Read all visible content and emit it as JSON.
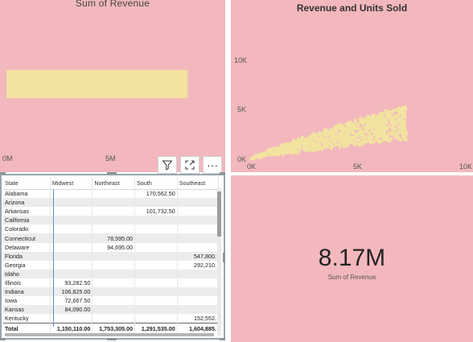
{
  "bar_tile": {
    "title": "Sum of Revenue",
    "x_ticks": [
      "0M",
      "5M"
    ]
  },
  "toolbar": {
    "filter_icon": "filter-icon",
    "focus_icon": "focus-mode-icon",
    "more_icon": "more-options-icon",
    "more_label": "···"
  },
  "matrix": {
    "headers": [
      "State",
      "Midwest",
      "Northeast",
      "South",
      "Southeast"
    ],
    "rows": [
      [
        "Alabama",
        "",
        "",
        "170,562.50",
        ""
      ],
      [
        "Arizona",
        "",
        "",
        "",
        ""
      ],
      [
        "Arkansas",
        "",
        "",
        "101,732.50",
        ""
      ],
      [
        "California",
        "",
        "",
        "",
        ""
      ],
      [
        "Colorado",
        "",
        "",
        "",
        ""
      ],
      [
        "Connecticut",
        "",
        "78,595.00",
        "",
        ""
      ],
      [
        "Delaware",
        "",
        "94,695.00",
        "",
        ""
      ],
      [
        "Florida",
        "",
        "",
        "",
        "547,800."
      ],
      [
        "Georgia",
        "",
        "",
        "",
        "292,210."
      ],
      [
        "Idaho",
        "",
        "",
        "",
        ""
      ],
      [
        "Illinois",
        "93,282.50",
        "",
        "",
        ""
      ],
      [
        "Indiana",
        "106,825.00",
        "",
        "",
        ""
      ],
      [
        "Iowa",
        "72,667.50",
        "",
        "",
        ""
      ],
      [
        "Kansas",
        "84,090.00",
        "",
        "",
        ""
      ],
      [
        "Kentucky",
        "",
        "",
        "",
        "152,552."
      ]
    ],
    "total": [
      "Total",
      "1,150,110.00",
      "1,753,305.00",
      "1,291,535.00",
      "1,604,885."
    ]
  },
  "scatter_tile": {
    "title": "Revenue and Units Sold",
    "y_ticks": [
      "10K",
      "5K",
      "0K"
    ],
    "x_ticks": [
      "0K",
      "5K",
      "10K"
    ]
  },
  "card": {
    "value": "8.17M",
    "label": "Sum of Revenue"
  },
  "colors": {
    "tile_background": "#f2b8bd",
    "data_color": "#f2e3a0"
  },
  "chart_data": [
    {
      "type": "bar",
      "title": "Sum of Revenue",
      "orientation": "horizontal",
      "categories": [
        ""
      ],
      "values": [
        8170000
      ],
      "xlim": [
        0,
        9500000
      ],
      "x_ticks": [
        "0M",
        "5M"
      ]
    },
    {
      "type": "scatter",
      "title": "Revenue and Units Sold",
      "xlim": [
        0,
        10000
      ],
      "ylim": [
        0,
        13000
      ],
      "x_ticks": [
        "0K",
        "5K",
        "10K"
      ],
      "y_ticks": [
        "0K",
        "5K",
        "10K"
      ],
      "point_cloud": {
        "count": 900,
        "x_max": 7200,
        "fan_max_slope": 1.65,
        "fan_min_slope": 0.6,
        "fan_exponent": 0.85,
        "y_max": 11500
      }
    }
  ]
}
